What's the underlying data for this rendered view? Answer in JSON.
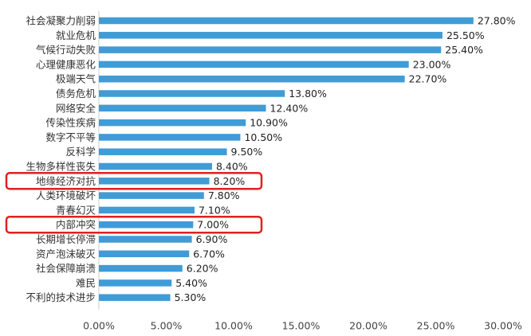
{
  "chart_data": {
    "type": "bar",
    "orientation": "horizontal",
    "categories": [
      "社会凝聚力削弱",
      "就业危机",
      "气候行动失败",
      "心理健康恶化",
      "极端天气",
      "债务危机",
      "网络安全",
      "传染性疾病",
      "数字不平等",
      "反科学",
      "生物多样性丧失",
      "地缘经济对抗",
      "人类环境破坏",
      "青春幻灭",
      "内部冲突",
      "长期增长停滞",
      "资产泡沫破灭",
      "社会保障崩溃",
      "难民",
      "不利的技术进步"
    ],
    "values": [
      27.8,
      25.5,
      25.4,
      23.0,
      22.7,
      13.8,
      12.4,
      10.9,
      10.5,
      9.5,
      8.4,
      8.2,
      7.8,
      7.1,
      7.0,
      6.9,
      6.7,
      6.2,
      5.4,
      5.3
    ],
    "value_labels": [
      "27.80%",
      "25.50%",
      "25.40%",
      "23.00%",
      "22.70%",
      "13.80%",
      "12.40%",
      "10.90%",
      "10.50%",
      "9.50%",
      "8.40%",
      "8.20%",
      "7.80%",
      "7.10%",
      "7.00%",
      "6.90%",
      "6.70%",
      "6.20%",
      "5.40%",
      "5.30%"
    ],
    "xlim": [
      0,
      30
    ],
    "xticks": [
      0,
      5,
      10,
      15,
      20,
      25,
      30
    ],
    "xtick_labels": [
      "0.00%",
      "5.00%",
      "10.00%",
      "15.00%",
      "20.00%",
      "25.00%",
      "30.00%"
    ],
    "highlighted": [
      "地缘经济对抗",
      "内部冲突"
    ],
    "colors": {
      "bar": "#3F9CD6",
      "highlight": "#E02020",
      "axis": "#cccccc"
    },
    "grid": false,
    "legend": "none"
  }
}
